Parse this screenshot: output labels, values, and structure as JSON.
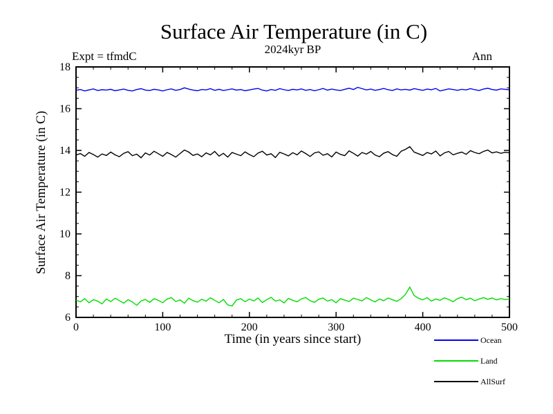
{
  "header": {
    "title": "Surface Air Temperature (in C)",
    "subtitle": "2024kyr BP",
    "left_annotation": "Expt = tfmdC",
    "right_annotation": "Ann"
  },
  "axes": {
    "xlabel": "Time (in years since start)",
    "ylabel": "Surface Air Temperature (in C)"
  },
  "legend": {
    "items": [
      {
        "label": "Ocean",
        "color": "#0000ee"
      },
      {
        "label": "Land",
        "color": "#00dd00"
      },
      {
        "label": "AllSurf",
        "color": "#000000"
      }
    ]
  },
  "chart_data": {
    "type": "line",
    "title": "Surface Air Temperature (in C)",
    "subtitle": "2024kyr BP",
    "xlabel": "Time (in years since start)",
    "ylabel": "Surface Air Temperature (in C)",
    "xlim": [
      0,
      500
    ],
    "ylim": [
      6,
      18
    ],
    "x_ticks": [
      0,
      100,
      200,
      300,
      400,
      500
    ],
    "y_ticks": [
      6,
      8,
      10,
      12,
      14,
      16,
      18
    ],
    "x_minor_step": 20,
    "y_minor_step": 0.5,
    "grid": false,
    "legend_position": "bottom-right",
    "x": [
      0,
      5,
      10,
      15,
      20,
      25,
      30,
      35,
      40,
      45,
      50,
      55,
      60,
      65,
      70,
      75,
      80,
      85,
      90,
      95,
      100,
      105,
      110,
      115,
      120,
      125,
      130,
      135,
      140,
      145,
      150,
      155,
      160,
      165,
      170,
      175,
      180,
      185,
      190,
      195,
      200,
      205,
      210,
      215,
      220,
      225,
      230,
      235,
      240,
      245,
      250,
      255,
      260,
      265,
      270,
      275,
      280,
      285,
      290,
      295,
      300,
      305,
      310,
      315,
      320,
      325,
      330,
      335,
      340,
      345,
      350,
      355,
      360,
      365,
      370,
      375,
      380,
      385,
      390,
      395,
      400,
      405,
      410,
      415,
      420,
      425,
      430,
      435,
      440,
      445,
      450,
      455,
      460,
      465,
      470,
      475,
      480,
      485,
      490,
      495,
      500
    ],
    "series": [
      {
        "name": "Ocean",
        "color": "#0000ee",
        "values": [
          16.88,
          16.92,
          16.85,
          16.9,
          16.95,
          16.87,
          16.91,
          16.89,
          16.93,
          16.86,
          16.9,
          16.94,
          16.88,
          16.85,
          16.92,
          16.96,
          16.89,
          16.87,
          16.93,
          16.9,
          16.85,
          16.91,
          16.95,
          16.88,
          16.92,
          17.0,
          16.94,
          16.89,
          16.86,
          16.92,
          16.9,
          16.96,
          16.88,
          16.93,
          16.87,
          16.91,
          16.95,
          16.89,
          16.92,
          16.86,
          16.9,
          16.94,
          16.97,
          16.89,
          16.85,
          16.92,
          16.88,
          16.96,
          16.91,
          16.87,
          16.93,
          16.9,
          16.95,
          16.88,
          16.92,
          16.86,
          16.91,
          16.97,
          16.89,
          16.94,
          16.9,
          16.87,
          16.93,
          16.98,
          16.92,
          17.02,
          16.96,
          16.9,
          16.94,
          16.88,
          16.92,
          16.97,
          16.91,
          16.87,
          16.95,
          16.9,
          16.93,
          16.89,
          16.96,
          16.92,
          16.88,
          16.94,
          16.91,
          16.97,
          16.85,
          16.9,
          16.95,
          16.92,
          16.88,
          16.93,
          16.9,
          16.96,
          16.91,
          16.87,
          16.94,
          16.98,
          16.92,
          16.89,
          16.95,
          16.93,
          16.91
        ]
      },
      {
        "name": "Land",
        "color": "#00dd00",
        "values": [
          6.82,
          6.75,
          6.9,
          6.7,
          6.85,
          6.78,
          6.65,
          6.88,
          6.76,
          6.92,
          6.8,
          6.68,
          6.85,
          6.74,
          6.58,
          6.79,
          6.86,
          6.72,
          6.9,
          6.82,
          6.7,
          6.88,
          6.95,
          6.76,
          6.84,
          6.68,
          6.92,
          6.8,
          6.73,
          6.87,
          6.78,
          6.94,
          6.82,
          6.7,
          6.86,
          6.6,
          6.55,
          6.83,
          6.9,
          6.75,
          6.88,
          6.79,
          6.93,
          6.71,
          6.85,
          6.96,
          6.78,
          6.84,
          6.69,
          6.91,
          6.82,
          6.75,
          6.89,
          6.95,
          6.8,
          6.72,
          6.87,
          6.93,
          6.78,
          6.85,
          6.7,
          6.9,
          6.83,
          6.76,
          6.92,
          6.86,
          6.79,
          6.95,
          6.84,
          6.74,
          6.88,
          6.8,
          6.93,
          6.85,
          6.77,
          6.9,
          7.1,
          7.45,
          7.05,
          6.92,
          6.84,
          6.95,
          6.78,
          6.88,
          6.82,
          6.94,
          6.86,
          6.75,
          6.9,
          6.97,
          6.85,
          6.92,
          6.8,
          6.88,
          6.95,
          6.87,
          6.93,
          6.84,
          6.9,
          6.86,
          6.88
        ]
      },
      {
        "name": "AllSurf",
        "color": "#000000",
        "values": [
          13.78,
          13.85,
          13.72,
          13.9,
          13.8,
          13.68,
          13.83,
          13.76,
          13.92,
          13.79,
          13.7,
          13.86,
          13.94,
          13.75,
          13.82,
          13.65,
          13.88,
          13.78,
          13.96,
          13.84,
          13.72,
          13.9,
          13.8,
          13.68,
          13.85,
          14.02,
          13.92,
          13.76,
          13.83,
          13.7,
          13.88,
          13.79,
          13.95,
          13.73,
          13.86,
          13.68,
          13.9,
          13.82,
          13.75,
          13.93,
          13.8,
          13.7,
          13.87,
          13.96,
          13.78,
          13.84,
          13.66,
          13.91,
          13.83,
          13.74,
          13.89,
          13.79,
          13.97,
          13.85,
          13.71,
          13.88,
          13.93,
          13.77,
          13.84,
          13.69,
          13.92,
          13.81,
          13.75,
          13.98,
          13.86,
          13.73,
          13.9,
          13.82,
          13.95,
          13.78,
          13.7,
          13.87,
          13.94,
          13.8,
          13.72,
          13.96,
          14.05,
          14.18,
          13.92,
          13.84,
          13.76,
          13.9,
          13.83,
          13.97,
          13.74,
          13.88,
          13.95,
          13.79,
          13.86,
          13.92,
          13.81,
          13.99,
          13.9,
          13.84,
          13.95,
          14.02,
          13.88,
          13.93,
          13.86,
          13.91,
          13.89
        ]
      }
    ]
  }
}
